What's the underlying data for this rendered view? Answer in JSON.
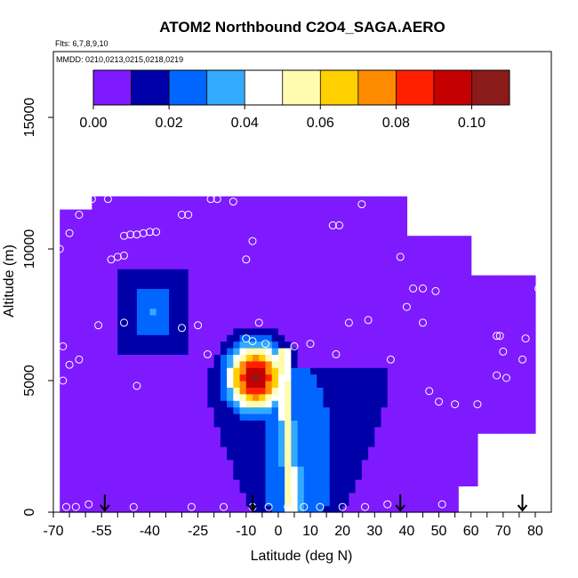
{
  "chart_data": {
    "type": "heatmap",
    "title": "ATOM2 Northbound C2O4_SAGA.AERO",
    "subtitle_flights": "Flts: 6,7,8,9,10",
    "subtitle_dates": "MMDD: 0210,0213,0215,0218,0219",
    "xlabel": "Latitude (deg N)",
    "ylabel": "Altitude (m)",
    "xlim": [
      -70,
      85
    ],
    "ylim": [
      0,
      17500
    ],
    "x_ticks": [
      -70,
      -55,
      -40,
      -25,
      -10,
      0,
      10,
      20,
      30,
      40,
      50,
      60,
      70,
      80
    ],
    "x_tick_labels": [
      "-70",
      "-55",
      "-40",
      "-25",
      "-10",
      "0",
      "10",
      "20",
      "30",
      "40",
      "50",
      "60",
      "70",
      "80"
    ],
    "y_ticks": [
      0,
      5000,
      10000,
      15000
    ],
    "y_tick_labels": [
      "0",
      "5000",
      "10000",
      "15000"
    ],
    "colorbar": {
      "min": 0.0,
      "max": 0.11,
      "tick_values": [
        0.0,
        0.02,
        0.04,
        0.06,
        0.08,
        0.1
      ],
      "tick_labels": [
        "0.00",
        "0.02",
        "0.04",
        "0.06",
        "0.08",
        "0.10"
      ],
      "segment_edges": [
        0.0,
        0.01,
        0.02,
        0.03,
        0.04,
        0.05,
        0.06,
        0.07,
        0.08,
        0.09,
        0.1,
        0.11
      ],
      "colors": [
        "#7f1aff",
        "#0000a8",
        "#0066ff",
        "#33aaff",
        "#ffffff",
        "#fffcb0",
        "#ffd000",
        "#ff8c00",
        "#ff2000",
        "#c40000",
        "#8b1a1a"
      ]
    },
    "field": {
      "lat_bounds": [
        -68,
        80
      ],
      "alt_top_m": 12000,
      "background_value": 0.005,
      "features": [
        {
          "kind": "hot_core",
          "lat": -8,
          "alt_m": 5000,
          "value": 0.1
        },
        {
          "kind": "column",
          "lat": 3,
          "alt_bottom_m": 0,
          "alt_top_m": 6000,
          "value": 0.055
        },
        {
          "kind": "upper_lobe",
          "lat_range": [
            -55,
            -25
          ],
          "alt_range_m": [
            6000,
            10000
          ],
          "value": 0.03
        }
      ]
    },
    "sample_points": [
      [
        -66,
        200
      ],
      [
        -63,
        200
      ],
      [
        -59,
        300
      ],
      [
        -45,
        200
      ],
      [
        -27,
        200
      ],
      [
        -17,
        200
      ],
      [
        -8,
        200
      ],
      [
        -3,
        200
      ],
      [
        3,
        200
      ],
      [
        8,
        200
      ],
      [
        13,
        200
      ],
      [
        20,
        200
      ],
      [
        27,
        200
      ],
      [
        34,
        300
      ],
      [
        -68,
        10000
      ],
      [
        -65,
        10600
      ],
      [
        -62,
        11300
      ],
      [
        -58,
        11900
      ],
      [
        -53,
        11900
      ],
      [
        -30,
        11300
      ],
      [
        -28,
        11300
      ],
      [
        -21,
        11900
      ],
      [
        -19,
        11900
      ],
      [
        -14,
        11800
      ],
      [
        -8,
        10300
      ],
      [
        17,
        10900
      ],
      [
        19,
        10900
      ],
      [
        26,
        11700
      ],
      [
        -48,
        10500
      ],
      [
        -46,
        10550
      ],
      [
        -44,
        10550
      ],
      [
        -42,
        10600
      ],
      [
        -40,
        10650
      ],
      [
        -38,
        10650
      ],
      [
        -52,
        9600
      ],
      [
        -50,
        9700
      ],
      [
        -48,
        9750
      ],
      [
        -10,
        9600
      ],
      [
        38,
        9700
      ],
      [
        42,
        8500
      ],
      [
        45,
        8500
      ],
      [
        49,
        8400
      ],
      [
        73,
        9400
      ],
      [
        81,
        8500
      ],
      [
        40,
        7800
      ],
      [
        -67,
        6300
      ],
      [
        -65,
        5600
      ],
      [
        -62,
        5800
      ],
      [
        -56,
        7100
      ],
      [
        -48,
        7200
      ],
      [
        -30,
        7000
      ],
      [
        -25,
        7100
      ],
      [
        -8,
        6500
      ],
      [
        -6,
        7200
      ],
      [
        -4,
        6400
      ],
      [
        5,
        6300
      ],
      [
        10,
        6400
      ],
      [
        18,
        6000
      ],
      [
        22,
        7200
      ],
      [
        28,
        7300
      ],
      [
        35,
        5800
      ],
      [
        45,
        7200
      ],
      [
        68,
        6700
      ],
      [
        69,
        6700
      ],
      [
        77,
        6600
      ],
      [
        76,
        5800
      ],
      [
        71,
        5100
      ],
      [
        70,
        6100
      ],
      [
        68,
        5200
      ],
      [
        -67,
        5000
      ],
      [
        -44,
        4800
      ],
      [
        -22,
        6000
      ],
      [
        47,
        4600
      ],
      [
        50,
        4200
      ],
      [
        55,
        4100
      ],
      [
        62,
        4100
      ],
      [
        51,
        300
      ],
      [
        -10,
        6600
      ]
    ],
    "flight_arrows_lat": [
      -54,
      -8,
      38,
      76
    ]
  }
}
